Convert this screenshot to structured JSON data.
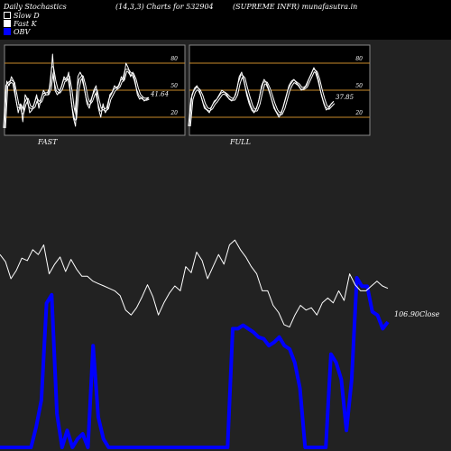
{
  "header": {
    "left": "Daily Stochastics",
    "mid": "(14,3,3) Charts for 532904",
    "right": "(SUPREME INFR) munafasutra.in"
  },
  "legend": [
    {
      "label": "Slow  D",
      "color": "#000000"
    },
    {
      "label": "Fast K",
      "color": "#ffffff"
    },
    {
      "label": "OBV",
      "color": "#0000ff"
    }
  ],
  "colors": {
    "background": "#222222",
    "panel": "#000000",
    "band": "#c88a2a",
    "line": "#ffffff",
    "obv": "#0000ff",
    "border": "#888888"
  },
  "chart_data": [
    {
      "type": "line",
      "title": "FAST",
      "yticks": [
        20,
        50,
        80
      ],
      "bands": [
        20,
        50,
        80
      ],
      "ylim": [
        0,
        100
      ],
      "last_value_label": "41.64",
      "series": [
        {
          "name": "Fast K",
          "values": [
            8,
            60,
            55,
            65,
            60,
            40,
            25,
            35,
            15,
            45,
            40,
            25,
            28,
            35,
            45,
            30,
            40,
            50,
            45,
            45,
            55,
            90,
            50,
            45,
            48,
            55,
            65,
            60,
            70,
            40,
            20,
            10,
            65,
            70,
            65,
            50,
            35,
            30,
            40,
            50,
            55,
            30,
            20,
            35,
            25,
            30,
            45,
            48,
            55,
            52,
            55,
            65,
            60,
            80,
            75,
            65,
            70,
            60,
            45,
            40,
            42,
            38,
            40,
            41.64
          ]
        },
        {
          "name": "Slow  D",
          "values": [
            8,
            55,
            58,
            60,
            58,
            45,
            32,
            33,
            25,
            35,
            40,
            32,
            30,
            32,
            40,
            36,
            38,
            45,
            46,
            46,
            52,
            75,
            60,
            50,
            48,
            52,
            60,
            62,
            65,
            50,
            30,
            18,
            50,
            62,
            65,
            55,
            42,
            35,
            38,
            45,
            50,
            38,
            28,
            30,
            28,
            30,
            40,
            45,
            50,
            52,
            54,
            60,
            62,
            72,
            72,
            68,
            68,
            62,
            52,
            45,
            42,
            40,
            40,
            41
          ]
        }
      ]
    },
    {
      "type": "line",
      "title": "FULL",
      "yticks": [
        20,
        50,
        80
      ],
      "bands": [
        20,
        50,
        80
      ],
      "ylim": [
        0,
        100
      ],
      "last_value_label": "37.85",
      "series": [
        {
          "name": "Fast K",
          "values": [
            10,
            45,
            52,
            55,
            50,
            40,
            30,
            28,
            25,
            32,
            38,
            40,
            45,
            50,
            48,
            45,
            40,
            38,
            42,
            50,
            65,
            70,
            60,
            45,
            35,
            28,
            25,
            30,
            40,
            55,
            62,
            58,
            50,
            40,
            30,
            25,
            20,
            25,
            35,
            45,
            55,
            60,
            62,
            58,
            55,
            50,
            52,
            55,
            62,
            68,
            75,
            70,
            60,
            45,
            35,
            28,
            30,
            35,
            37.85
          ]
        },
        {
          "name": "Slow  D",
          "values": [
            10,
            40,
            48,
            52,
            50,
            44,
            35,
            30,
            28,
            30,
            35,
            38,
            42,
            46,
            47,
            45,
            42,
            40,
            40,
            45,
            58,
            66,
            63,
            52,
            42,
            33,
            28,
            28,
            35,
            48,
            58,
            58,
            52,
            44,
            35,
            28,
            24,
            24,
            30,
            40,
            50,
            56,
            60,
            58,
            56,
            52,
            52,
            54,
            60,
            66,
            72,
            70,
            62,
            50,
            40,
            32,
            30,
            33,
            36
          ]
        }
      ]
    },
    {
      "type": "line",
      "title": "",
      "last_value_label": "106.90",
      "last_value_suffix": "Close",
      "series": [
        {
          "name": "Close",
          "values": [
            70,
            64,
            50,
            57,
            67,
            65,
            74,
            70,
            78,
            54,
            62,
            68,
            56,
            66,
            58,
            52,
            52,
            48,
            46,
            44,
            42,
            40,
            36,
            24,
            20,
            26,
            35,
            45,
            35,
            20,
            30,
            38,
            44,
            40,
            60,
            55,
            72,
            65,
            50,
            60,
            70,
            62,
            78,
            82,
            74,
            68,
            60,
            54,
            40,
            40,
            28,
            22,
            12,
            10,
            20,
            28,
            24,
            26,
            20,
            30,
            34,
            30,
            40,
            32,
            54,
            45,
            40,
            40,
            44,
            48,
            44,
            42
          ]
        },
        {
          "name": "OBV",
          "values": [
            0,
            0,
            0,
            0,
            0,
            0,
            0,
            12,
            28,
            85,
            90,
            20,
            0,
            10,
            0,
            5,
            8,
            0,
            60,
            18,
            5,
            0,
            0,
            0,
            0,
            0,
            0,
            0,
            0,
            0,
            0,
            0,
            0,
            0,
            0,
            0,
            0,
            0,
            0,
            0,
            0,
            0,
            0,
            0,
            0,
            70,
            70,
            72,
            70,
            68,
            65,
            64,
            60,
            62,
            65,
            60,
            58,
            50,
            35,
            0,
            0,
            0,
            0,
            0,
            55,
            50,
            40,
            10,
            40,
            100,
            95,
            95,
            80,
            78,
            70,
            74
          ]
        }
      ]
    }
  ]
}
